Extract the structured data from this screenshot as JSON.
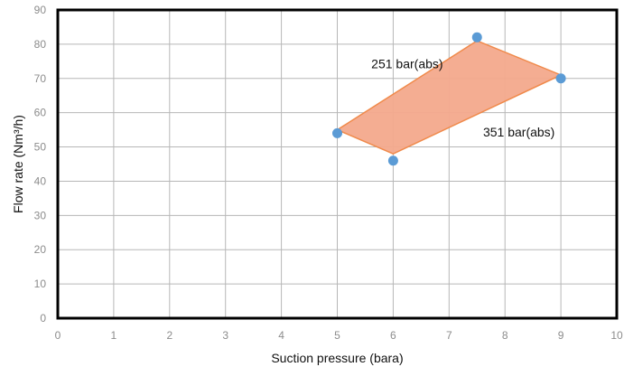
{
  "chart_data": {
    "type": "scatter",
    "title": "",
    "xlabel": "Suction pressure (bara)",
    "ylabel": "Flow rate (Nm³/h)",
    "xlim": [
      0,
      10
    ],
    "ylim": [
      0,
      90
    ],
    "xticks": [
      0,
      1,
      2,
      3,
      4,
      5,
      6,
      7,
      8,
      9,
      10
    ],
    "yticks": [
      0,
      10,
      20,
      30,
      40,
      50,
      60,
      70,
      80,
      90
    ],
    "grid": true,
    "legend": "none",
    "series": [
      {
        "points": [
          {
            "x": 5,
            "y": 54
          },
          {
            "x": 6,
            "y": 46
          },
          {
            "x": 7.5,
            "y": 82
          },
          {
            "x": 9,
            "y": 70
          }
        ]
      }
    ],
    "region": {
      "vertices": [
        {
          "x": 5,
          "y": 55
        },
        {
          "x": 7.5,
          "y": 81
        },
        {
          "x": 9,
          "y": 71
        },
        {
          "x": 6,
          "y": 48
        }
      ],
      "fill": "#f3a98c",
      "stroke": "#f08a4b"
    },
    "annotations": [
      {
        "text": "251 bar(abs)",
        "x": 6.25,
        "y": 73
      },
      {
        "text": "351 bar(abs)",
        "x": 8.25,
        "y": 53
      }
    ],
    "colors": {
      "point": "#5b9bd5",
      "frame": "#000000",
      "grid": "#b7b7b7",
      "tick_label": "#8c8c8c"
    }
  }
}
